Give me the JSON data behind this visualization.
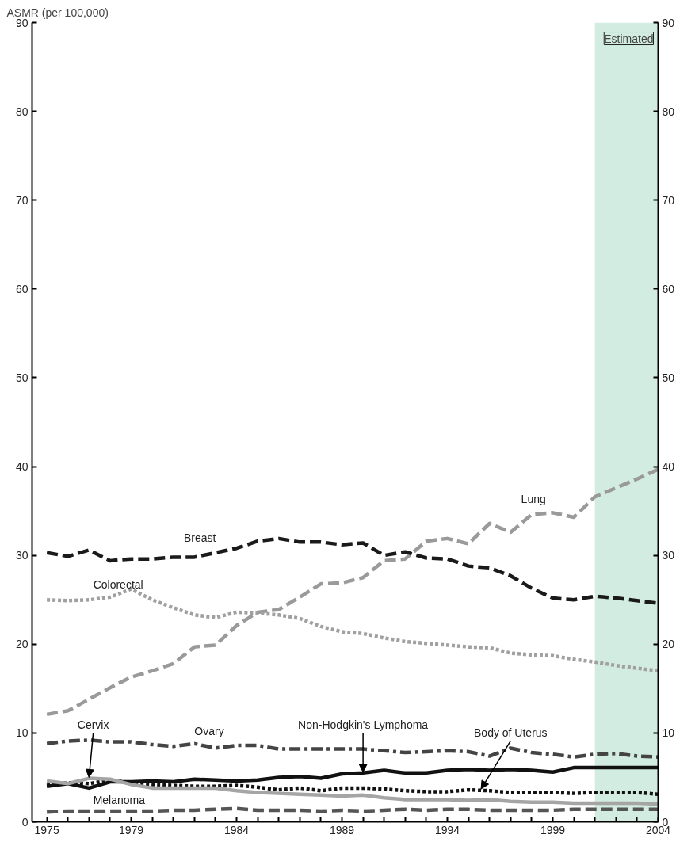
{
  "chart_data": {
    "type": "line",
    "ylabel": "ASMR (per 100,000)",
    "x": [
      1975,
      1976,
      1977,
      1978,
      1979,
      1980,
      1981,
      1982,
      1983,
      1984,
      1985,
      1986,
      1987,
      1988,
      1989,
      1990,
      1991,
      1992,
      1993,
      1994,
      1995,
      1996,
      1997,
      1998,
      1999,
      2000,
      2001,
      2002,
      2003,
      2004
    ],
    "series": [
      {
        "name": "Lung",
        "color": "#9a9a9a",
        "line_style": "dashed",
        "values": [
          12.1,
          12.5,
          13.8,
          15.1,
          16.3,
          17.0,
          17.8,
          19.7,
          19.9,
          22.1,
          23.6,
          23.9,
          25.3,
          26.8,
          26.9,
          27.5,
          29.4,
          29.6,
          31.6,
          31.9,
          31.3,
          33.6,
          32.6,
          34.6,
          34.8,
          34.3,
          36.6,
          37.6,
          38.6,
          39.7
        ]
      },
      {
        "name": "Breast",
        "color": "#1a1a1a",
        "line_style": "dashed",
        "values": [
          30.3,
          29.9,
          30.6,
          29.4,
          29.6,
          29.6,
          29.8,
          29.8,
          30.3,
          30.8,
          31.6,
          31.9,
          31.5,
          31.5,
          31.2,
          31.4,
          30.0,
          30.4,
          29.7,
          29.6,
          28.8,
          28.6,
          27.7,
          26.3,
          25.2,
          25.0,
          25.4,
          25.2,
          24.9,
          24.6
        ]
      },
      {
        "name": "Colorectal",
        "color": "#a0a0a0",
        "line_style": "dotted",
        "values": [
          25.0,
          24.9,
          25.0,
          25.3,
          26.2,
          25.0,
          24.1,
          23.3,
          23.0,
          23.6,
          23.5,
          23.3,
          22.9,
          22.0,
          21.4,
          21.2,
          20.7,
          20.3,
          20.1,
          19.9,
          19.7,
          19.6,
          19.0,
          18.8,
          18.7,
          18.3,
          18.0,
          17.6,
          17.3,
          17.0
        ]
      },
      {
        "name": "Ovary",
        "color": "#444444",
        "line_style": "dashdot",
        "values": [
          8.8,
          9.1,
          9.2,
          9.0,
          9.0,
          8.7,
          8.5,
          8.8,
          8.3,
          8.6,
          8.6,
          8.2,
          8.2,
          8.2,
          8.2,
          8.2,
          8.0,
          7.8,
          7.9,
          8.0,
          7.9,
          7.4,
          8.3,
          7.8,
          7.6,
          7.3,
          7.6,
          7.7,
          7.4,
          7.3
        ]
      },
      {
        "name": "Non-Hodgkin's Lymphoma",
        "color": "#111111",
        "line_style": "solid",
        "values": [
          4.0,
          4.3,
          3.8,
          4.5,
          4.5,
          4.6,
          4.5,
          4.8,
          4.7,
          4.6,
          4.7,
          5.0,
          5.1,
          4.9,
          5.4,
          5.5,
          5.8,
          5.5,
          5.5,
          5.8,
          5.9,
          5.8,
          5.9,
          5.8,
          5.6,
          6.1,
          6.1,
          6.1,
          6.1,
          6.1
        ]
      },
      {
        "name": "Body of Uterus",
        "color": "#111111",
        "line_style": "dotted",
        "values": [
          4.1,
          4.4,
          4.3,
          4.7,
          4.4,
          4.2,
          4.1,
          4.0,
          4.0,
          4.1,
          3.9,
          3.6,
          3.8,
          3.5,
          3.8,
          3.8,
          3.7,
          3.5,
          3.4,
          3.4,
          3.6,
          3.5,
          3.3,
          3.3,
          3.3,
          3.2,
          3.3,
          3.3,
          3.3,
          3.1
        ]
      },
      {
        "name": "Cervix",
        "color": "#a5a5a5",
        "line_style": "solid",
        "values": [
          4.6,
          4.3,
          4.9,
          4.8,
          4.2,
          3.8,
          3.8,
          3.8,
          3.8,
          3.5,
          3.3,
          3.2,
          3.1,
          3.0,
          2.9,
          3.0,
          2.7,
          2.5,
          2.5,
          2.5,
          2.4,
          2.5,
          2.3,
          2.2,
          2.2,
          2.1,
          2.1,
          2.1,
          2.1,
          2.0
        ]
      },
      {
        "name": "Melanoma",
        "color": "#555555",
        "line_style": "dashed",
        "values": [
          1.1,
          1.2,
          1.2,
          1.2,
          1.2,
          1.2,
          1.3,
          1.3,
          1.4,
          1.5,
          1.3,
          1.3,
          1.3,
          1.2,
          1.3,
          1.2,
          1.3,
          1.4,
          1.3,
          1.4,
          1.4,
          1.3,
          1.3,
          1.3,
          1.3,
          1.4,
          1.4,
          1.4,
          1.4,
          1.4
        ]
      }
    ],
    "xlim": [
      1974.3,
      2004
    ],
    "xticks": [
      1975,
      {
        "value": 1976,
        "label": null
      },
      {
        "value": 1977,
        "label": null
      },
      {
        "value": 1978,
        "label": null
      },
      1979,
      {
        "value": 1980,
        "label": null
      },
      {
        "value": 1981,
        "label": null
      },
      {
        "value": 1982,
        "label": null
      },
      {
        "value": 1983,
        "label": null
      },
      1984,
      {
        "value": 1985,
        "label": null
      },
      {
        "value": 1986,
        "label": null
      },
      {
        "value": 1987,
        "label": null
      },
      {
        "value": 1988,
        "label": null
      },
      1989,
      {
        "value": 1990,
        "label": null
      },
      {
        "value": 1991,
        "label": null
      },
      {
        "value": 1992,
        "label": null
      },
      {
        "value": 1993,
        "label": null
      },
      1994,
      {
        "value": 1995,
        "label": null
      },
      {
        "value": 1996,
        "label": null
      },
      {
        "value": 1997,
        "label": null
      },
      {
        "value": 1998,
        "label": null
      },
      1999,
      {
        "value": 2000,
        "label": null
      },
      {
        "value": 2001,
        "label": null
      },
      {
        "value": 2002,
        "label": null
      },
      {
        "value": 2003,
        "label": null
      },
      2004
    ],
    "ylim": [
      0,
      90
    ],
    "yticks": [
      0,
      10,
      20,
      30,
      40,
      50,
      60,
      70,
      80,
      90
    ],
    "y2lim": [
      0,
      90
    ],
    "y2ticks": [
      0,
      10,
      20,
      30,
      40,
      50,
      60,
      70,
      80,
      90
    ],
    "bands": [
      {
        "axis": "x",
        "from": 2001,
        "to": 2004,
        "label": "Estimated",
        "color": "#d3ece1"
      }
    ],
    "grid": false
  }
}
